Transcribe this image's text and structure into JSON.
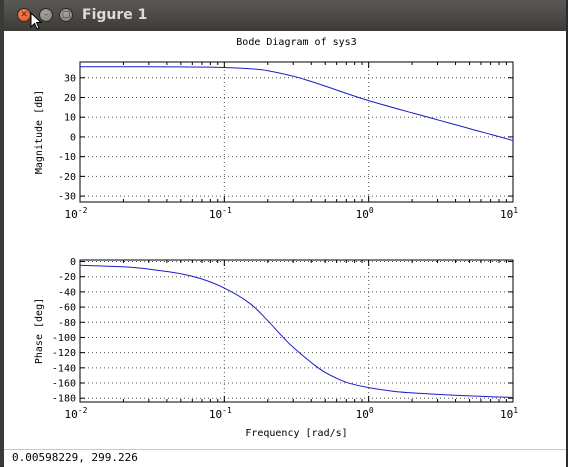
{
  "window": {
    "title": "Figure 1"
  },
  "statusbar": {
    "coords": "0.00598229,  299.226"
  },
  "chart_data": [
    {
      "type": "line",
      "title": "Bode Diagram of sys3",
      "xlabel": "",
      "ylabel": "Magnitude [dB]",
      "xscale": "log",
      "xlim": [
        0.01,
        10
      ],
      "ylim": [
        -33,
        38
      ],
      "grid": true,
      "x_tick_labels": [
        {
          "base": "10",
          "exp": "-2",
          "value": 0.01
        },
        {
          "base": "10",
          "exp": "-1",
          "value": 0.1
        },
        {
          "base": "10",
          "exp": "0",
          "value": 1
        },
        {
          "base": "10",
          "exp": "1",
          "value": 10
        }
      ],
      "y_ticks": [
        -30,
        -20,
        -10,
        0,
        10,
        20,
        30
      ],
      "series": [
        {
          "color": "#1c1cc8",
          "x": [
            0.01,
            0.03,
            0.05,
            0.08,
            0.1,
            0.15,
            0.2,
            0.3,
            0.4,
            0.5,
            0.7,
            1.0,
            2.0,
            3.0,
            5.0,
            7.0,
            10.0
          ],
          "y": [
            35.6,
            35.6,
            35.5,
            35.4,
            35.2,
            34.6,
            33.6,
            30.8,
            28.1,
            25.8,
            22.1,
            18.4,
            12.2,
            8.7,
            4.2,
            1.3,
            -1.8
          ]
        }
      ]
    },
    {
      "type": "line",
      "title": "",
      "xlabel": "Frequency [rad/s]",
      "ylabel": "Phase [deg]",
      "xscale": "log",
      "xlim": [
        0.01,
        10
      ],
      "ylim": [
        -185,
        2
      ],
      "grid": true,
      "x_tick_labels": [
        {
          "base": "10",
          "exp": "-2",
          "value": 0.01
        },
        {
          "base": "10",
          "exp": "-1",
          "value": 0.1
        },
        {
          "base": "10",
          "exp": "0",
          "value": 1
        },
        {
          "base": "10",
          "exp": "1",
          "value": 10
        }
      ],
      "y_ticks": [
        0,
        -20,
        -40,
        -60,
        -80,
        -100,
        -120,
        -140,
        -160,
        -180
      ],
      "series": [
        {
          "color": "#1c1cc8",
          "x": [
            0.01,
            0.02,
            0.03,
            0.05,
            0.07,
            0.1,
            0.15,
            0.2,
            0.25,
            0.3,
            0.4,
            0.5,
            0.7,
            1.0,
            1.5,
            2.0,
            3.0,
            5.0,
            7.0,
            10.0
          ],
          "y": [
            -5,
            -7,
            -10,
            -16,
            -23,
            -35,
            -55,
            -78,
            -98,
            -113,
            -133,
            -146,
            -159,
            -166,
            -171,
            -173,
            -175,
            -177,
            -178,
            -179
          ]
        }
      ]
    }
  ]
}
